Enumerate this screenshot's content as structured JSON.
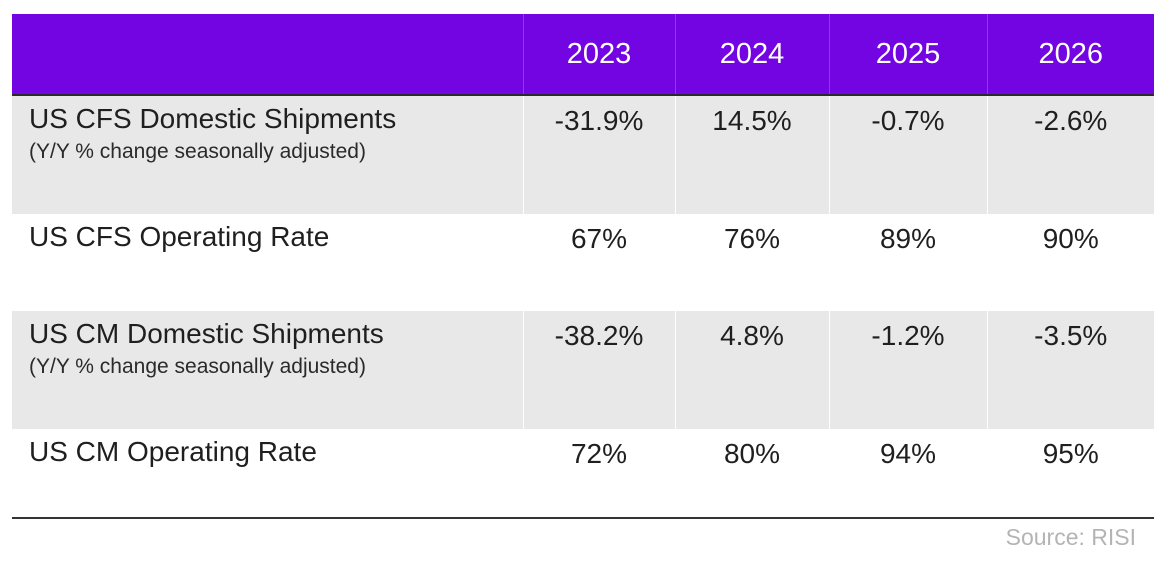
{
  "chart_data": {
    "type": "table",
    "title": "",
    "columns": [
      "",
      "2023",
      "2024",
      "2025",
      "2026"
    ],
    "rows": [
      {
        "label": "US CFS Domestic Shipments",
        "sublabel": "(Y/Y % change seasonally adjusted)",
        "values": [
          "-31.9%",
          "14.5%",
          "-0.7%",
          "-2.6%"
        ],
        "numeric": [
          -31.9,
          14.5,
          -0.7,
          -2.6
        ]
      },
      {
        "label": "US CFS Operating Rate",
        "sublabel": "",
        "values": [
          "67%",
          "76%",
          "89%",
          "90%"
        ],
        "numeric": [
          67,
          76,
          89,
          90
        ]
      },
      {
        "label": "US CM Domestic Shipments",
        "sublabel": "(Y/Y % change seasonally adjusted)",
        "values": [
          "-38.2%",
          "4.8%",
          "-1.2%",
          "-3.5%"
        ],
        "numeric": [
          -38.2,
          4.8,
          -1.2,
          -3.5
        ]
      },
      {
        "label": "US CM Operating Rate",
        "sublabel": "",
        "values": [
          "72%",
          "80%",
          "94%",
          "95%"
        ],
        "numeric": [
          72,
          80,
          94,
          95
        ]
      }
    ],
    "source": "Source: RISI"
  },
  "colors": {
    "header_bg": "#7305e3",
    "header_text": "#ffffff",
    "shaded_row": "#e8e8e8",
    "source_text": "#b4b4b4"
  }
}
